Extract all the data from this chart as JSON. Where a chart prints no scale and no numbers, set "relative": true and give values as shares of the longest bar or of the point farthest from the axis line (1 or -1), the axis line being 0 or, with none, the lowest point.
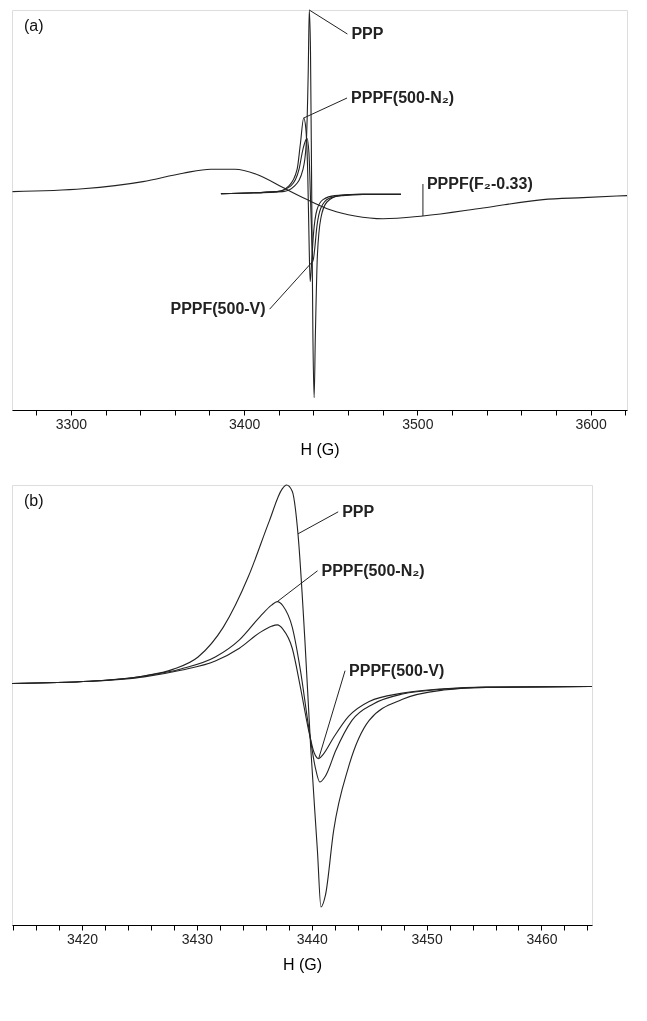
{
  "chart_data": [
    {
      "type": "line",
      "relative": true,
      "xlabel": "H (G)",
      "annotations": [
        "(a)"
      ],
      "xlim": [
        3266,
        3621
      ],
      "xticks": [
        {
          "value": 3280,
          "label": null
        },
        3300,
        {
          "value": 3320,
          "label": null
        },
        {
          "value": 3340,
          "label": null
        },
        {
          "value": 3360,
          "label": null
        },
        {
          "value": 3380,
          "label": null
        },
        3400,
        {
          "value": 3420,
          "label": null
        },
        {
          "value": 3440,
          "label": null
        },
        {
          "value": 3460,
          "label": null
        },
        {
          "value": 3480,
          "label": null
        },
        3500,
        {
          "value": 3520,
          "label": null
        },
        {
          "value": 3540,
          "label": null
        },
        {
          "value": 3560,
          "label": null
        },
        {
          "value": 3580,
          "label": null
        },
        3600,
        {
          "value": 3620,
          "label": null
        }
      ],
      "series": [
        {
          "name": "PPP",
          "color": "#222222",
          "x": [
            3386.6,
            3422.4,
            3429.3,
            3434,
            3435.8,
            3437,
            3437.6,
            3438.3,
            3439,
            3439.7,
            3440.4,
            3441.1,
            3442.3,
            3444.3,
            3447.8,
            3454.7,
            3468.6,
            3490.5
          ],
          "values": [
            0.541,
            0.546,
            0.561,
            0.602,
            0.663,
            0.847,
            1,
            0.898,
            0.541,
            0.184,
            0.031,
            0.184,
            0.388,
            0.48,
            0.52,
            0.536,
            0.539,
            0.539
          ]
        },
        {
          "name": "PPPF(500-N₂)",
          "color": "#222222",
          "x": [
            3386.6,
            3419,
            3426,
            3430.6,
            3432.4,
            3434.4,
            3435.6,
            3436.7,
            3437.4,
            3438.1,
            3438.8,
            3440,
            3442,
            3445.5,
            3452.4,
            3468.6,
            3490.5
          ],
          "values": [
            0.541,
            0.546,
            0.561,
            0.602,
            0.663,
            0.73,
            0.704,
            0.592,
            0.439,
            0.321,
            0.357,
            0.439,
            0.5,
            0.526,
            0.536,
            0.539,
            0.539
          ]
        },
        {
          "name": "PPPF(500-V)",
          "color": "#222222",
          "x": [
            3386.6,
            3419,
            3427.1,
            3431.7,
            3434,
            3436.3,
            3437.4,
            3438.6,
            3439.7,
            3440.6,
            3442,
            3444.3,
            3448.9,
            3457,
            3468.6,
            3490.5
          ],
          "values": [
            0.541,
            0.546,
            0.561,
            0.602,
            0.653,
            0.679,
            0.643,
            0.49,
            0.372,
            0.398,
            0.459,
            0.505,
            0.529,
            0.536,
            0.539,
            0.539
          ]
        },
        {
          "name": "PPPF(F₂-0.33)",
          "color": "#222222",
          "x": [
            3266.3,
            3306.9,
            3341.6,
            3364.7,
            3380.8,
            3394.7,
            3408.5,
            3422.4,
            3436.3,
            3450.1,
            3464,
            3480.1,
            3503.2,
            3537.9,
            3572.5,
            3595.6,
            3621
          ],
          "values": [
            0.546,
            0.553,
            0.571,
            0.592,
            0.602,
            0.602,
            0.587,
            0.556,
            0.526,
            0.5,
            0.485,
            0.478,
            0.485,
            0.505,
            0.526,
            0.531,
            0.536
          ]
        }
      ]
    },
    {
      "type": "line",
      "relative": true,
      "xlabel": "H (G)",
      "annotations": [
        "(b)"
      ],
      "xlim": [
        3413.9,
        3464.4
      ],
      "xticks": [
        {
          "value": 3414,
          "label": null
        },
        {
          "value": 3416,
          "label": null
        },
        {
          "value": 3418,
          "label": null
        },
        3420,
        {
          "value": 3422,
          "label": null
        },
        {
          "value": 3424,
          "label": null
        },
        {
          "value": 3426,
          "label": null
        },
        {
          "value": 3428,
          "label": null
        },
        3430,
        {
          "value": 3432,
          "label": null
        },
        {
          "value": 3434,
          "label": null
        },
        {
          "value": 3436,
          "label": null
        },
        {
          "value": 3438,
          "label": null
        },
        3440,
        {
          "value": 3442,
          "label": null
        },
        {
          "value": 3444,
          "label": null
        },
        {
          "value": 3446,
          "label": null
        },
        {
          "value": 3448,
          "label": null
        },
        3450,
        {
          "value": 3452,
          "label": null
        },
        {
          "value": 3454,
          "label": null
        },
        {
          "value": 3456,
          "label": null
        },
        {
          "value": 3458,
          "label": null
        },
        3460,
        {
          "value": 3462,
          "label": null
        },
        {
          "value": 3464,
          "label": null
        }
      ],
      "series": [
        {
          "name": "PPP",
          "color": "#222222",
          "x": [
            3413.9,
            3420.7,
            3425.4,
            3427.9,
            3430.1,
            3432.3,
            3434.5,
            3436.3,
            3437.4,
            3437.8,
            3438.3,
            3438.8,
            3439.4,
            3439.9,
            3440.5,
            3440.8,
            3441.2,
            3441.9,
            3443.2,
            3445,
            3447.9,
            3451.5,
            3455.2,
            3464.4
          ],
          "values": [
            0.549,
            0.554,
            0.566,
            0.581,
            0.609,
            0.677,
            0.793,
            0.918,
            0.99,
            1,
            0.986,
            0.889,
            0.648,
            0.407,
            0.166,
            0.041,
            0.069,
            0.214,
            0.359,
            0.465,
            0.513,
            0.534,
            0.54,
            0.542
          ]
        },
        {
          "name": "PPPF(500-N₂)",
          "color": "#222222",
          "x": [
            3413.9,
            3420.7,
            3425.4,
            3428.6,
            3431.6,
            3433.7,
            3435.5,
            3436.5,
            3437,
            3437.5,
            3438.3,
            3439,
            3439.7,
            3440.3,
            3440.7,
            3441.2,
            3442.1,
            3443.5,
            3445.4,
            3447.9,
            3451.5,
            3455.2,
            3464.4
          ],
          "values": [
            0.549,
            0.554,
            0.566,
            0.582,
            0.609,
            0.648,
            0.701,
            0.727,
            0.735,
            0.725,
            0.677,
            0.581,
            0.455,
            0.359,
            0.325,
            0.339,
            0.397,
            0.465,
            0.503,
            0.525,
            0.536,
            0.54,
            0.542
          ]
        },
        {
          "name": "PPPF(500-V)",
          "color": "#222222",
          "x": [
            3413.9,
            3420.7,
            3425.4,
            3428.6,
            3431.6,
            3433.7,
            3435.5,
            3436.5,
            3437,
            3437.5,
            3438.3,
            3439,
            3439.7,
            3440.2,
            3440.6,
            3441,
            3441.9,
            3443.2,
            3445,
            3447.9,
            3451.5,
            3455.2,
            3464.4
          ],
          "values": [
            0.549,
            0.554,
            0.564,
            0.579,
            0.6,
            0.629,
            0.665,
            0.679,
            0.682,
            0.672,
            0.629,
            0.542,
            0.446,
            0.392,
            0.378,
            0.388,
            0.426,
            0.474,
            0.508,
            0.527,
            0.537,
            0.541,
            0.542
          ]
        }
      ]
    }
  ]
}
